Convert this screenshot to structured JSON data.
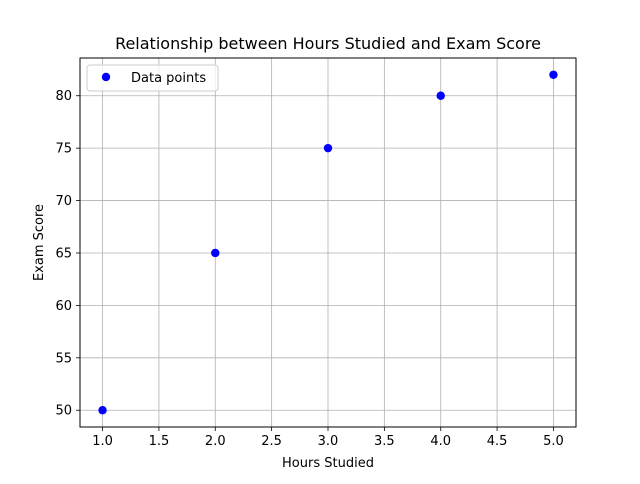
{
  "chart_data": {
    "type": "scatter",
    "title": "Relationship between Hours Studied and Exam Score",
    "xlabel": "Hours Studied",
    "ylabel": "Exam Score",
    "xlim": [
      0.8,
      5.2
    ],
    "ylim": [
      48.4,
      83.6
    ],
    "xticks": [
      1.0,
      1.5,
      2.0,
      2.5,
      3.0,
      3.5,
      4.0,
      4.5,
      5.0
    ],
    "xtick_labels": [
      "1.0",
      "1.5",
      "2.0",
      "2.5",
      "3.0",
      "3.5",
      "4.0",
      "4.5",
      "5.0"
    ],
    "yticks": [
      50,
      55,
      60,
      65,
      70,
      75,
      80
    ],
    "ytick_labels": [
      "50",
      "55",
      "60",
      "65",
      "70",
      "75",
      "80"
    ],
    "grid": true,
    "legend_position": "top-left",
    "series": [
      {
        "name": "Data points",
        "color": "#0000ff",
        "x": [
          1,
          2,
          3,
          4,
          5
        ],
        "y": [
          50,
          65,
          75,
          80,
          82
        ]
      }
    ]
  }
}
